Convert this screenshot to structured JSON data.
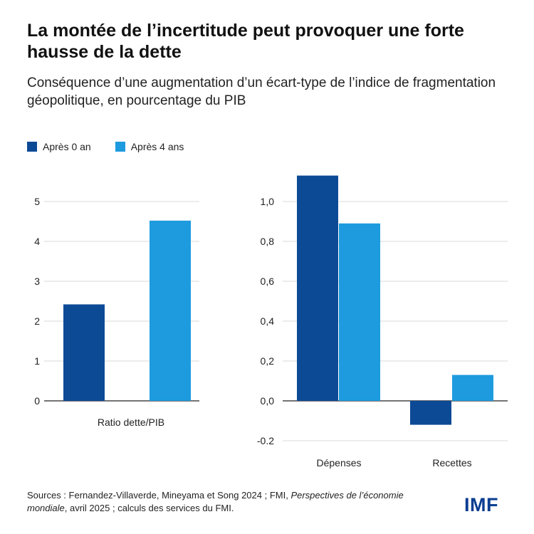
{
  "title": "La montée de l’incertitude peut provoquer une forte hausse de la dette",
  "subtitle": "Conséquence d’une augmentation d’un écart-type de l’indice de fragmentation géopolitique, en pourcentage du PIB",
  "legend": [
    {
      "label": "Après 0 an",
      "color": "#0d4a96"
    },
    {
      "label": "Après 4 ans",
      "color": "#1e9bde"
    }
  ],
  "sources": {
    "prefix": "Sources : Fernandez-Villaverde, Mineyama et Song 2024 ; FMI, ",
    "italic": "Perspectives de l’économie mondiale",
    "suffix": ", avril 2025 ; calculs des services du FMI."
  },
  "logo": "IMF",
  "chart_data": [
    {
      "type": "bar",
      "categories": [
        "Ratio dette/PIB"
      ],
      "series": [
        {
          "name": "Après 0 an",
          "values": [
            2.42
          ]
        },
        {
          "name": "Après 4 ans",
          "values": [
            4.52
          ]
        }
      ],
      "ylim": [
        0,
        5
      ],
      "yticks": [
        0,
        1,
        2,
        3,
        4,
        5
      ],
      "ytick_labels": [
        "0",
        "1",
        "2",
        "3",
        "4",
        "5"
      ],
      "grid": true
    },
    {
      "type": "bar",
      "categories": [
        "Dépenses",
        "Recettes"
      ],
      "series": [
        {
          "name": "Après 0 an",
          "values": [
            1.13,
            -0.12
          ]
        },
        {
          "name": "Après 4 ans",
          "values": [
            0.89,
            0.13
          ]
        }
      ],
      "ylim": [
        -0.2,
        1.0
      ],
      "yticks": [
        -0.2,
        0.0,
        0.2,
        0.4,
        0.6,
        0.8,
        1.0
      ],
      "ytick_labels": [
        "-0.2",
        "0,0",
        "0,2",
        "0,4",
        "0,6",
        "0,8",
        "1,0"
      ],
      "grid": true
    }
  ]
}
